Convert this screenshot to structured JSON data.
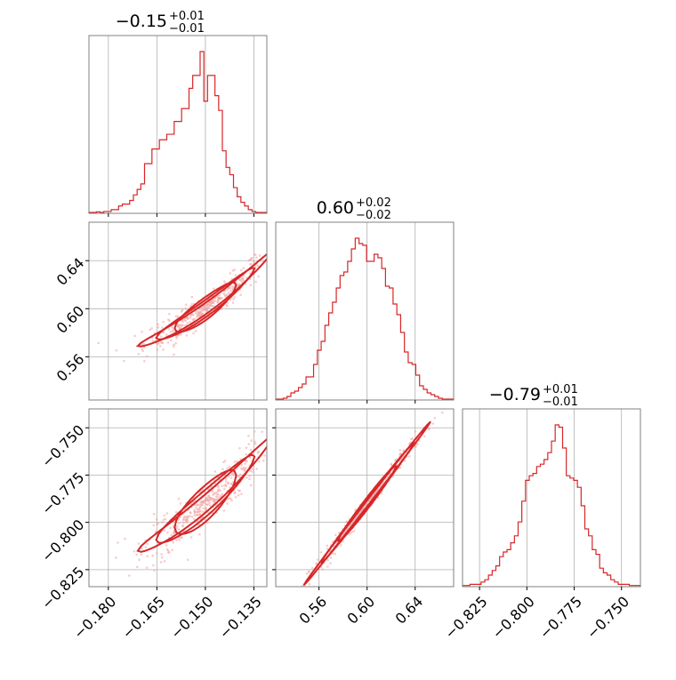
{
  "colors": {
    "series": "#d62728",
    "grid": "#b0b0b0",
    "frame": "#808080",
    "text": "#000000",
    "scatter": "#f2a3a3"
  },
  "chart_data": {
    "type": "corner",
    "parameters": [
      {
        "median": "−0.15",
        "plus": "+0.01",
        "minus": "−0.01",
        "range": [
          -0.186,
          -0.131
        ],
        "ticks": [
          -0.18,
          -0.165,
          -0.15,
          -0.135
        ],
        "tick_labels": [
          "−0.180",
          "−0.165",
          "−0.150",
          "−0.135"
        ]
      },
      {
        "median": "0.60",
        "plus": "+0.02",
        "minus": "−0.02",
        "range": [
          0.524,
          0.672
        ],
        "ticks": [
          0.56,
          0.6,
          0.64
        ],
        "tick_labels": [
          "0.56",
          "0.60",
          "0.64"
        ]
      },
      {
        "median": "−0.79",
        "plus": "+0.01",
        "minus": "−0.01",
        "range": [
          -0.834,
          -0.74
        ],
        "ticks": [
          -0.825,
          -0.8,
          -0.775,
          -0.75
        ],
        "tick_labels": [
          "−0.825",
          "−0.800",
          "−0.775",
          "−0.750"
        ]
      }
    ],
    "histograms": [
      {
        "param": 0,
        "edges": [
          -0.186,
          -0.131
        ],
        "counts": [
          0.5,
          0.5,
          0.8,
          0.5,
          1,
          1,
          2,
          2,
          4,
          5,
          5,
          7,
          10,
          13,
          16,
          27,
          27,
          35,
          35,
          40,
          40,
          43,
          43,
          50,
          50,
          57,
          57,
          68,
          75,
          75,
          88,
          61,
          75,
          75,
          64,
          56,
          34,
          25,
          21,
          14,
          9,
          6,
          4,
          2,
          1,
          0.5,
          0.5,
          0.5
        ]
      },
      {
        "param": 1,
        "edges": [
          0.524,
          0.672
        ],
        "counts": [
          0.5,
          0.5,
          1,
          2,
          4,
          5,
          7,
          9,
          13,
          13,
          20,
          28,
          33,
          42,
          49,
          55,
          63,
          70,
          72,
          78,
          85,
          91,
          88,
          87,
          78,
          78,
          82,
          80,
          74,
          64,
          63,
          54,
          48,
          38,
          27,
          21,
          20,
          14,
          8,
          6,
          4,
          3,
          2,
          1,
          0.5,
          0.5,
          0.5
        ]
      },
      {
        "param": 2,
        "edges": [
          -0.834,
          -0.74
        ],
        "counts": [
          0.5,
          0.5,
          1,
          1,
          1,
          2,
          3,
          5,
          7,
          9,
          13,
          15,
          16,
          19,
          22,
          28,
          37,
          46,
          48,
          49,
          52,
          53,
          55,
          58,
          63,
          70,
          69,
          60,
          48,
          47,
          46,
          43,
          35,
          25,
          22,
          16,
          14,
          8,
          6,
          5,
          3,
          2,
          1,
          1,
          1,
          0.5,
          0.5,
          0.5
        ]
      }
    ],
    "pair_plots": [
      {
        "x_param": 0,
        "y_param": 1,
        "relation": "y = 0.60 + 1.9*(x + 0.15) + 20*(x + 0.15)^2"
      },
      {
        "x_param": 0,
        "y_param": 2,
        "relation": "y = -0.79 + 1.45*(x + 0.15) + 12*(x + 0.15)^2"
      },
      {
        "x_param": 1,
        "y_param": 2,
        "relation": "y = -0.79 + 0.82*(x - 0.60)"
      }
    ]
  }
}
